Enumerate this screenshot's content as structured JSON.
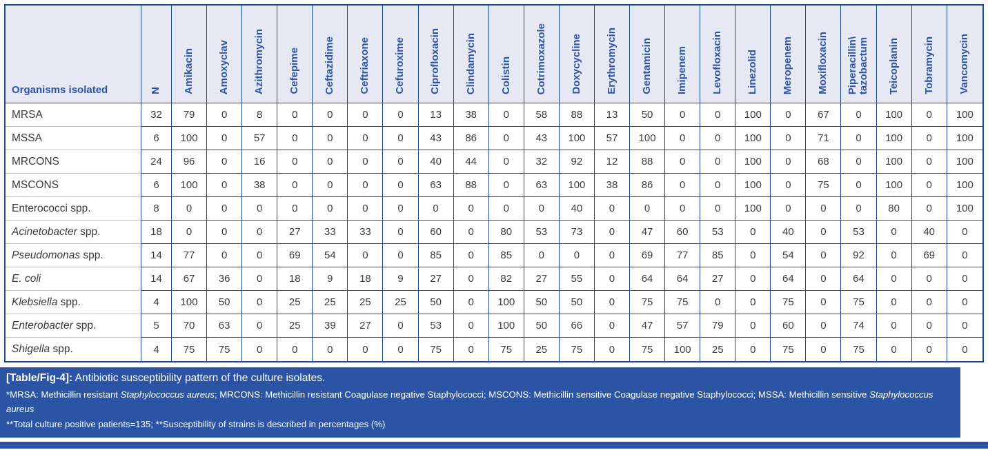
{
  "colors": {
    "header_bg": "#e6e9f4",
    "header_text": "#2d54a3",
    "grid_border": "#1d4a8c",
    "label_row_separator": "#b6c0d8",
    "cell_text": "#3d3d3d",
    "caption_bg": "#2b54a4",
    "caption_text": "#ffffff"
  },
  "table": {
    "org_header": "Organisms isolated",
    "columns": [
      "N",
      "Amikacin",
      "Amoxyclav",
      "Azithromycin",
      "Cefepime",
      "Ceftazidime",
      "Ceftriaxone",
      "Cefuroxime",
      "Ciprofloxacin",
      "Clindamycin",
      "Colistin",
      "Cotrimoxazole",
      "Doxycycline",
      "Erythromycin",
      "Gentamicin",
      "Imipenem",
      "Levofloxacin",
      "Linezolid",
      "Meropenem",
      "Moxifloxacin",
      "Piperacillin\\\ntazobactum",
      "Teicoplanin",
      "Tobramycin",
      "Vancomycin"
    ],
    "rows": [
      {
        "genus": "",
        "suffix": "MRSA",
        "values": [
          32,
          79,
          0,
          8,
          0,
          0,
          0,
          0,
          13,
          38,
          0,
          58,
          88,
          13,
          50,
          0,
          0,
          100,
          0,
          67,
          0,
          100,
          0,
          100
        ]
      },
      {
        "genus": "",
        "suffix": "MSSA",
        "values": [
          6,
          100,
          0,
          57,
          0,
          0,
          0,
          0,
          43,
          86,
          0,
          43,
          100,
          57,
          100,
          0,
          0,
          100,
          0,
          71,
          0,
          100,
          0,
          100
        ]
      },
      {
        "genus": "",
        "suffix": "MRCONS",
        "values": [
          24,
          96,
          0,
          16,
          0,
          0,
          0,
          0,
          40,
          44,
          0,
          32,
          92,
          12,
          88,
          0,
          0,
          100,
          0,
          68,
          0,
          100,
          0,
          100
        ]
      },
      {
        "genus": "",
        "suffix": "MSCONS",
        "values": [
          6,
          100,
          0,
          38,
          0,
          0,
          0,
          0,
          63,
          88,
          0,
          63,
          100,
          38,
          86,
          0,
          0,
          100,
          0,
          75,
          0,
          100,
          0,
          100
        ]
      },
      {
        "genus": "",
        "suffix": "Enterococci spp.",
        "values": [
          8,
          0,
          0,
          0,
          0,
          0,
          0,
          0,
          0,
          0,
          0,
          0,
          40,
          0,
          0,
          0,
          0,
          100,
          0,
          0,
          0,
          80,
          0,
          100
        ]
      },
      {
        "genus": "Acinetobacter",
        "suffix": " spp.",
        "values": [
          18,
          0,
          0,
          0,
          27,
          33,
          33,
          0,
          60,
          0,
          80,
          53,
          73,
          0,
          47,
          60,
          53,
          0,
          40,
          0,
          53,
          0,
          40,
          0
        ]
      },
      {
        "genus": "Pseudomonas",
        "suffix": " spp.",
        "values": [
          14,
          77,
          0,
          0,
          69,
          54,
          0,
          0,
          85,
          0,
          85,
          0,
          0,
          0,
          69,
          77,
          85,
          0,
          54,
          0,
          92,
          0,
          69,
          0
        ]
      },
      {
        "genus": "E. coli",
        "suffix": "",
        "values": [
          14,
          67,
          36,
          0,
          18,
          9,
          18,
          9,
          27,
          0,
          82,
          27,
          55,
          0,
          64,
          64,
          27,
          0,
          64,
          0,
          64,
          0,
          0,
          0
        ]
      },
      {
        "genus": "Klebsiella",
        "suffix": " spp.",
        "values": [
          4,
          100,
          50,
          0,
          25,
          25,
          25,
          25,
          50,
          0,
          100,
          50,
          50,
          0,
          75,
          75,
          0,
          0,
          75,
          0,
          75,
          0,
          0,
          0
        ]
      },
      {
        "genus": "Enterobacter",
        "suffix": " spp.",
        "values": [
          5,
          70,
          63,
          0,
          25,
          39,
          27,
          0,
          53,
          0,
          100,
          50,
          66,
          0,
          47,
          57,
          79,
          0,
          60,
          0,
          74,
          0,
          0,
          0
        ]
      },
      {
        "genus": "Shigella",
        "suffix": " spp.",
        "values": [
          4,
          75,
          75,
          0,
          0,
          0,
          0,
          0,
          75,
          0,
          75,
          25,
          75,
          0,
          75,
          100,
          25,
          0,
          75,
          0,
          75,
          0,
          0,
          0
        ]
      }
    ]
  },
  "caption": {
    "label": "[Table/Fig-4]:",
    "title": " Antibiotic susceptibility pattern of the culture isolates.",
    "note1_segments": [
      {
        "t": "*MRSA: Methicillin resistant ",
        "i": false
      },
      {
        "t": "Staphylococcus aureus",
        "i": true
      },
      {
        "t": "; MRCONS: Methicillin resistant Coagulase negative Staphylococci; MSCONS: Methicillin sensitive Coagulase negative Staphylococci; MSSA: Methicillin sensitive ",
        "i": false
      },
      {
        "t": "Staphylococcus aureus",
        "i": true
      }
    ],
    "note2": "**Total culture positive patients=135; **Susceptibility of strains is described in percentages (%)"
  }
}
